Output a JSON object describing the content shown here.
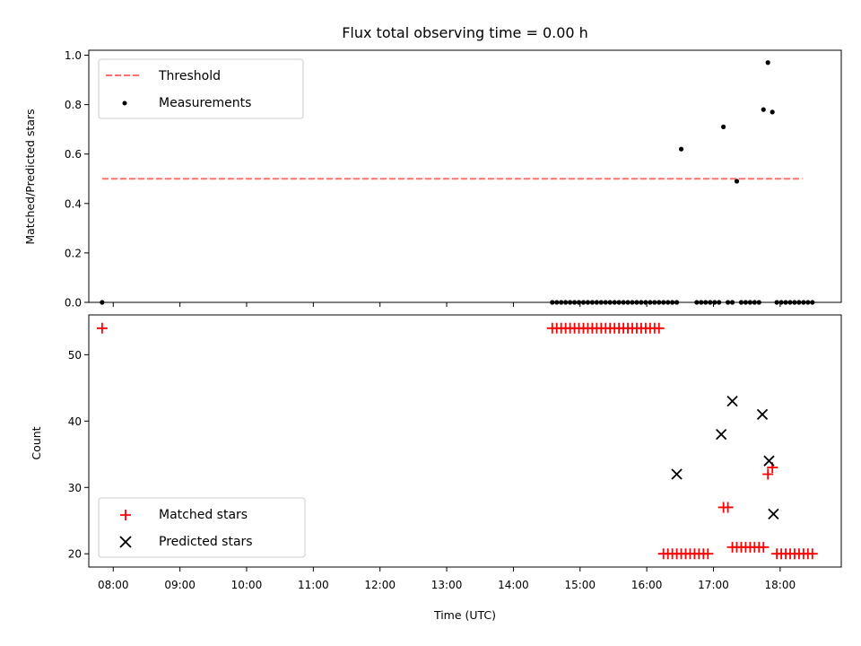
{
  "chart_data": [
    {
      "type": "scatter",
      "title": "Flux total observing time = 0.00 h",
      "xlabel": "",
      "ylabel": "Matched/Predicted stars",
      "xlim": [
        "07:38",
        "18:55"
      ],
      "ylim": [
        0,
        1.02
      ],
      "yticks": [
        0.0,
        0.2,
        0.4,
        0.6,
        0.8,
        1.0
      ],
      "ytick_labels": [
        "0.0",
        "0.2",
        "0.4",
        "0.6",
        "0.8",
        "1.0"
      ],
      "grid": false,
      "legend": {
        "placement": "upper-left",
        "entries": [
          "Threshold",
          "Measurements"
        ]
      },
      "series": [
        {
          "name": "Threshold",
          "kind": "dashed-line",
          "color": "#ff7070",
          "x": [
            "07:50",
            "18:20"
          ],
          "y": [
            0.5,
            0.5
          ]
        },
        {
          "name": "Measurements",
          "kind": "dots",
          "color": "#000000",
          "x": [
            "07:50",
            "14:35",
            "14:39",
            "14:43",
            "14:47",
            "14:51",
            "14:55",
            "14:59",
            "15:03",
            "15:07",
            "15:11",
            "15:15",
            "15:19",
            "15:23",
            "15:27",
            "15:31",
            "15:35",
            "15:39",
            "15:43",
            "15:47",
            "15:51",
            "15:55",
            "15:59",
            "16:03",
            "16:07",
            "16:11",
            "16:15",
            "16:19",
            "16:23",
            "16:27",
            "16:31",
            "16:45",
            "16:49",
            "16:53",
            "16:57",
            "17:01",
            "17:05",
            "17:09",
            "17:13",
            "17:17",
            "17:21",
            "17:25",
            "17:29",
            "17:33",
            "17:37",
            "17:41",
            "17:45",
            "17:49",
            "17:53",
            "17:57",
            "18:01",
            "18:05",
            "18:09",
            "18:13",
            "18:17",
            "18:21",
            "18:25",
            "18:29"
          ],
          "y": [
            0,
            0,
            0,
            0,
            0,
            0,
            0,
            0,
            0,
            0,
            0,
            0,
            0,
            0,
            0,
            0,
            0,
            0,
            0,
            0,
            0,
            0,
            0,
            0,
            0,
            0,
            0,
            0,
            0,
            0,
            0.62,
            0,
            0,
            0,
            0,
            0,
            0,
            0.71,
            0,
            0,
            0.49,
            0,
            0,
            0,
            0,
            0,
            0.78,
            0.97,
            0.77,
            0,
            0,
            0,
            0,
            0,
            0,
            0,
            0,
            0
          ]
        }
      ]
    },
    {
      "type": "scatter",
      "title": "",
      "xlabel": "Time (UTC)",
      "ylabel": "Count",
      "xlim": [
        "07:38",
        "18:55"
      ],
      "ylim": [
        18,
        56
      ],
      "yticks": [
        20,
        30,
        40,
        50
      ],
      "ytick_labels": [
        "20",
        "30",
        "40",
        "50"
      ],
      "xticks": [
        "08:00",
        "09:00",
        "10:00",
        "11:00",
        "12:00",
        "13:00",
        "14:00",
        "15:00",
        "16:00",
        "17:00",
        "18:00"
      ],
      "grid": false,
      "legend": {
        "placement": "lower-left",
        "entries": [
          "Matched stars",
          "Predicted stars"
        ]
      },
      "series": [
        {
          "name": "Matched stars",
          "marker": "plus",
          "color": "#ff0000",
          "x": [
            "07:50",
            "14:35",
            "14:39",
            "14:43",
            "14:47",
            "14:51",
            "14:55",
            "14:59",
            "15:03",
            "15:07",
            "15:11",
            "15:15",
            "15:19",
            "15:23",
            "15:27",
            "15:31",
            "15:35",
            "15:39",
            "15:43",
            "15:47",
            "15:51",
            "15:55",
            "15:59",
            "16:03",
            "16:07",
            "16:11",
            "16:15",
            "16:19",
            "16:23",
            "16:27",
            "16:31",
            "16:35",
            "16:39",
            "16:43",
            "16:47",
            "16:51",
            "16:55",
            "17:09",
            "17:13",
            "17:17",
            "17:21",
            "17:25",
            "17:29",
            "17:33",
            "17:37",
            "17:41",
            "17:45",
            "17:49",
            "17:53",
            "17:57",
            "18:01",
            "18:05",
            "18:09",
            "18:13",
            "18:17",
            "18:21",
            "18:25",
            "18:29"
          ],
          "y": [
            54,
            54,
            54,
            54,
            54,
            54,
            54,
            54,
            54,
            54,
            54,
            54,
            54,
            54,
            54,
            54,
            54,
            54,
            54,
            54,
            54,
            54,
            54,
            54,
            54,
            54,
            20,
            20,
            20,
            20,
            20,
            20,
            20,
            20,
            20,
            20,
            20,
            27,
            27,
            21,
            21,
            21,
            21,
            21,
            21,
            21,
            21,
            32,
            33,
            20,
            20,
            20,
            20,
            20,
            20,
            20,
            20,
            20
          ]
        },
        {
          "name": "Predicted stars",
          "marker": "x",
          "color": "#000000",
          "x": [
            "16:27",
            "17:07",
            "17:17",
            "17:44",
            "17:50",
            "17:54"
          ],
          "y": [
            32,
            38,
            43,
            41,
            34,
            26
          ]
        }
      ]
    }
  ]
}
